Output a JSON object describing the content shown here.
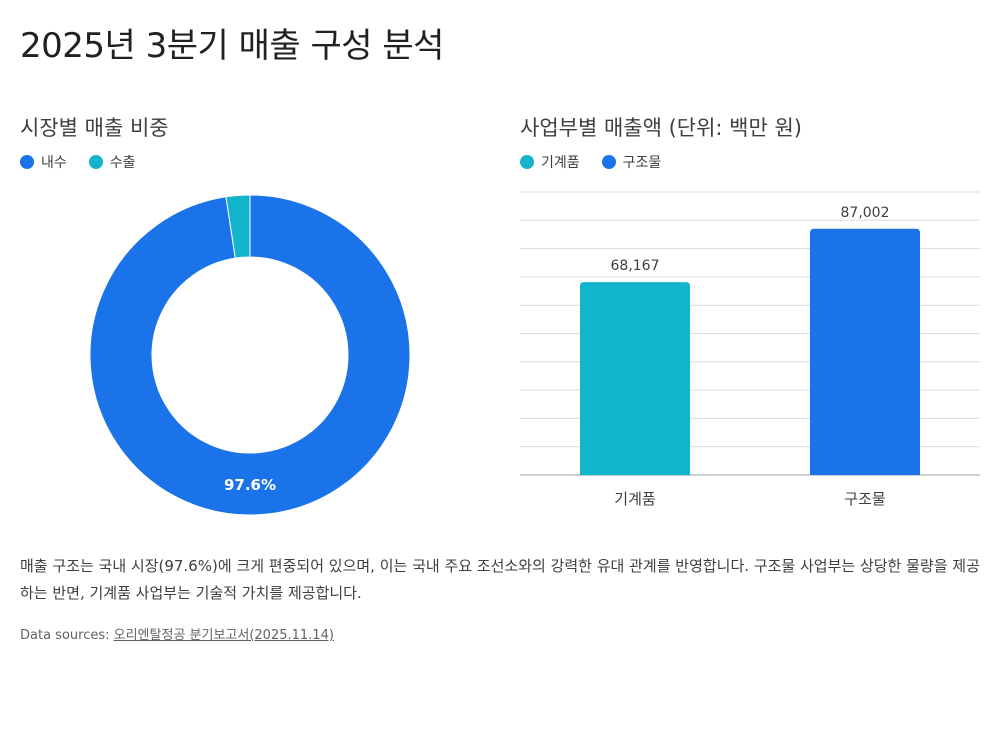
{
  "page": {
    "title": "2025년 3분기 매출 구성 분석",
    "summary": "매출 구조는 국내 시장(97.6%)에 크게 편중되어 있으며, 이는 국내 주요 조선소와의 강력한 유대 관계를 반영합니다. 구조물 사업부는 상당한 물량을 제공하는 반면, 기계품 사업부는 기술적 가치를 제공합니다.",
    "sources_label": "Data sources:",
    "source_link": "오리엔탈정공 분기보고서(2025.11.14)"
  },
  "colors": {
    "blue": "#1a73e8",
    "teal": "#12b5cb"
  },
  "chart_data": [
    {
      "type": "pie",
      "title": "시장별 매출 비중",
      "legend_position": "top-left",
      "donut": true,
      "labels": [
        "내수",
        "수출"
      ],
      "values": [
        97.6,
        2.4
      ],
      "colors": [
        "#1a73e8",
        "#12b5cb"
      ],
      "data_labels": [
        "97.6%",
        ""
      ]
    },
    {
      "type": "bar",
      "title": "사업부별 매출액 (단위: 백만 원)",
      "legend_position": "top-left",
      "categories": [
        "기계품",
        "구조물"
      ],
      "values": [
        68167,
        87002
      ],
      "value_labels": [
        "68,167",
        "87,002"
      ],
      "colors": [
        "#12b5cb",
        "#1a73e8"
      ],
      "legend": [
        "기계품",
        "구조물"
      ],
      "ylim": [
        0,
        100000
      ],
      "grid": true
    }
  ]
}
